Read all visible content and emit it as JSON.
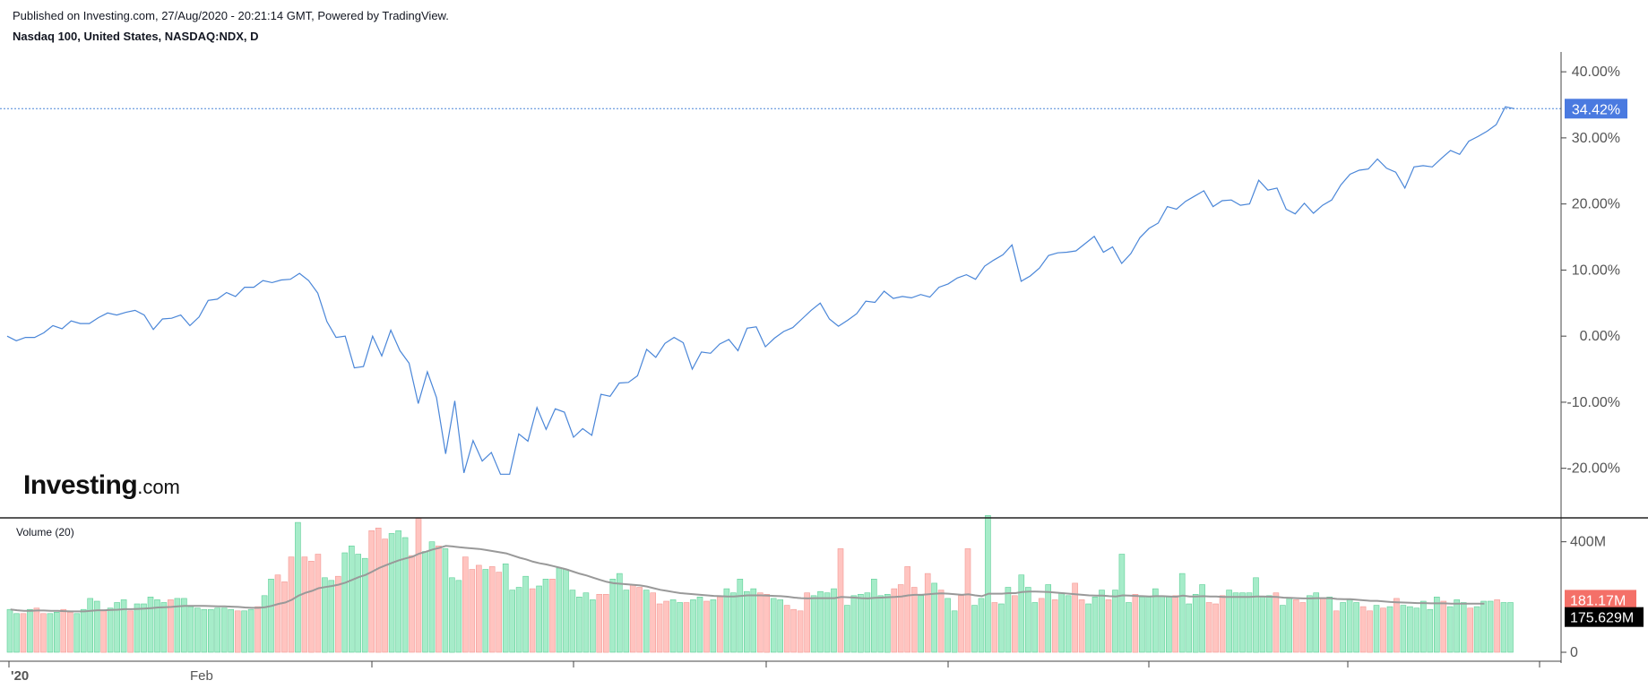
{
  "header": {
    "published": "Published on Investing.com, 27/Aug/2020 - 20:21:14 GMT, Powered by TradingView.",
    "symbol": "Nasdaq 100, United States, NASDAQ:NDX, D"
  },
  "logo": {
    "brand": "Investing",
    "suffix": ".com"
  },
  "colors": {
    "line": "#4a86d8",
    "badge": "#4a7ae0",
    "vol_up": "#a6ecc9",
    "vol_down": "#ffc4c0",
    "ma": "#999999",
    "down_badge": "#f47068"
  },
  "chart_data": [
    {
      "type": "line",
      "title": "",
      "y_unit": "%",
      "ylim": [
        -27.5,
        43
      ],
      "yticks": [
        40,
        30,
        20,
        10,
        0,
        -10,
        -20
      ],
      "ytick_labels": [
        "40.00%",
        "30.00%",
        "20.00%",
        "10.00%",
        "0.00%",
        "-10.00%",
        "-20.00%"
      ],
      "last_value": 34.42,
      "last_label": "34.42%",
      "x_labels": [
        "'20",
        "Feb"
      ],
      "values": [
        0.0,
        -0.7,
        -0.2,
        -0.2,
        0.5,
        1.6,
        1.1,
        2.3,
        1.9,
        1.9,
        2.8,
        3.5,
        3.2,
        3.6,
        3.9,
        3.2,
        1.0,
        2.6,
        2.7,
        3.2,
        1.6,
        2.9,
        5.4,
        5.6,
        6.6,
        6.0,
        7.4,
        7.4,
        8.4,
        8.1,
        8.5,
        8.6,
        9.5,
        8.4,
        6.5,
        2.2,
        -0.2,
        0.0,
        -4.8,
        -4.6,
        0.0,
        -3.0,
        0.9,
        -2.2,
        -4.1,
        -10.2,
        -5.4,
        -9.3,
        -17.8,
        -9.8,
        -20.7,
        -15.8,
        -18.9,
        -17.6,
        -20.9,
        -20.9,
        -14.8,
        -15.9,
        -10.8,
        -14.1,
        -11.0,
        -11.5,
        -15.3,
        -14.0,
        -15.0,
        -8.8,
        -9.1,
        -7.1,
        -7.0,
        -6.0,
        -2.0,
        -3.2,
        -1.1,
        -0.2,
        -1.0,
        -5.0,
        -2.4,
        -2.6,
        -1.2,
        -0.5,
        -2.2,
        1.2,
        1.4,
        -1.6,
        -0.3,
        0.7,
        1.3,
        2.6,
        3.9,
        5.0,
        2.6,
        1.5,
        2.4,
        3.4,
        5.3,
        5.1,
        6.8,
        5.7,
        6.0,
        5.8,
        6.3,
        5.9,
        7.4,
        7.9,
        8.8,
        9.3,
        8.6,
        10.6,
        11.5,
        12.3,
        13.8,
        8.3,
        9.1,
        10.3,
        12.2,
        12.6,
        12.7,
        12.9,
        14.0,
        15.1,
        12.7,
        13.5,
        11.0,
        12.5,
        14.9,
        16.3,
        17.1,
        19.6,
        19.2,
        20.4,
        21.2,
        22.0,
        19.6,
        20.5,
        20.6,
        19.8,
        20.0,
        23.6,
        22.1,
        22.4,
        19.2,
        18.5,
        20.1,
        18.6,
        19.8,
        20.6,
        22.9,
        24.5,
        25.1,
        25.3,
        26.8,
        25.4,
        24.8,
        22.4,
        25.6,
        25.8,
        25.6,
        26.9,
        28.1,
        27.5,
        29.5,
        30.2,
        31.0,
        32.0,
        34.7,
        34.42
      ]
    },
    {
      "type": "bar",
      "title": "Volume (20)",
      "y_unit": "M",
      "ylim": [
        0,
        480
      ],
      "yticks": [
        400,
        0
      ],
      "ytick_labels": [
        "400M",
        "0"
      ],
      "badges": {
        "volume": "181.17M",
        "ma": "175.629M"
      },
      "values": [
        155,
        140,
        140,
        155,
        160,
        140,
        140,
        145,
        155,
        145,
        140,
        155,
        195,
        185,
        150,
        160,
        180,
        190,
        150,
        175,
        175,
        200,
        190,
        180,
        190,
        195,
        195,
        165,
        160,
        155,
        155,
        160,
        160,
        155,
        150,
        150,
        155,
        165,
        205,
        265,
        280,
        255,
        345,
        470,
        345,
        330,
        355,
        270,
        260,
        275,
        360,
        385,
        355,
        340,
        440,
        450,
        410,
        430,
        440,
        415,
        350,
        485,
        365,
        400,
        385,
        375,
        270,
        260,
        345,
        300,
        315,
        300,
        310,
        290,
        320,
        225,
        235,
        275,
        230,
        240,
        265,
        265,
        305,
        300,
        225,
        200,
        215,
        190,
        210,
        210,
        265,
        285,
        225,
        245,
        235,
        225,
        215,
        175,
        185,
        190,
        180,
        180,
        190,
        200,
        185,
        190,
        200,
        230,
        215,
        265,
        220,
        230,
        215,
        210,
        195,
        190,
        170,
        155,
        150,
        215,
        205,
        220,
        215,
        230,
        375,
        170,
        205,
        210,
        215,
        265,
        205,
        210,
        230,
        245,
        310,
        235,
        205,
        285,
        250,
        225,
        195,
        150,
        205,
        375,
        170,
        195,
        495,
        180,
        175,
        235,
        205,
        280,
        235,
        180,
        195,
        245,
        190,
        215,
        205,
        250,
        190,
        175,
        200,
        225,
        190,
        225,
        355,
        180,
        210,
        200,
        200,
        230,
        205,
        200,
        205,
        285,
        175,
        210,
        245,
        180,
        175,
        205,
        225,
        215,
        215,
        215,
        270,
        200,
        205,
        215,
        170,
        195,
        190,
        180,
        205,
        215,
        195,
        200,
        150,
        180,
        190,
        180,
        165,
        150,
        170,
        160,
        165,
        195,
        170,
        165,
        160,
        185,
        155,
        200,
        185,
        165,
        190,
        180,
        160,
        165,
        185,
        185,
        190,
        180,
        180
      ],
      "up": [
        1,
        1,
        0,
        1,
        0,
        0,
        1,
        1,
        0,
        0,
        1,
        1,
        1,
        1,
        0,
        1,
        1,
        1,
        0,
        1,
        1,
        1,
        1,
        1,
        0,
        1,
        1,
        1,
        1,
        1,
        1,
        1,
        1,
        1,
        0,
        1,
        1,
        0,
        1,
        1,
        0,
        0,
        0,
        1,
        0,
        0,
        0,
        1,
        1,
        0,
        1,
        1,
        1,
        1,
        0,
        0,
        0,
        1,
        1,
        1,
        0,
        0,
        1,
        1,
        0,
        1,
        1,
        1,
        0,
        0,
        0,
        1,
        0,
        0,
        1,
        1,
        1,
        1,
        0,
        1,
        1,
        0,
        1,
        1,
        1,
        1,
        1,
        1,
        0,
        0,
        1,
        1,
        1,
        0,
        0,
        1,
        0,
        0,
        0,
        1,
        1,
        0,
        1,
        1,
        0,
        1,
        0,
        1,
        1,
        1,
        1,
        1,
        0,
        0,
        1,
        1,
        0,
        0,
        0,
        0,
        1,
        1,
        1,
        1,
        0,
        1,
        1,
        1,
        1,
        1,
        1,
        1,
        0,
        0,
        0,
        0,
        1,
        0,
        1,
        0,
        1,
        1,
        0,
        0,
        1,
        1,
        1,
        0,
        1,
        1,
        0,
        1,
        1,
        1,
        0,
        1,
        0,
        1,
        1,
        0,
        0,
        1,
        1,
        1,
        0,
        1,
        1,
        1,
        0,
        1,
        1,
        1,
        1,
        1,
        0,
        1,
        1,
        1,
        1,
        0,
        0,
        0,
        1,
        1,
        1,
        1,
        1,
        1,
        1,
        0,
        1,
        1,
        0,
        0,
        1,
        1,
        0,
        1,
        0,
        1,
        1,
        1,
        0,
        0,
        1,
        0,
        1,
        0,
        1,
        1,
        1,
        1,
        1,
        1,
        0,
        1,
        1,
        1,
        0,
        1,
        1,
        1,
        0,
        1,
        1
      ],
      "ma": [
        155,
        152,
        150,
        150,
        151,
        151,
        150,
        150,
        149,
        148,
        148,
        148,
        150,
        152,
        152,
        153,
        154,
        156,
        156,
        157,
        158,
        160,
        162,
        163,
        164,
        166,
        168,
        168,
        168,
        168,
        167,
        166,
        166,
        165,
        164,
        162,
        161,
        161,
        163,
        168,
        175,
        180,
        190,
        205,
        215,
        222,
        232,
        236,
        240,
        245,
        252,
        262,
        272,
        280,
        292,
        305,
        315,
        324,
        333,
        340,
        346,
        357,
        364,
        372,
        378,
        385,
        383,
        380,
        378,
        376,
        374,
        370,
        366,
        362,
        358,
        350,
        342,
        336,
        328,
        322,
        318,
        312,
        306,
        300,
        292,
        284,
        278,
        270,
        262,
        255,
        250,
        248,
        246,
        244,
        242,
        238,
        232,
        226,
        222,
        218,
        214,
        212,
        210,
        208,
        206,
        204,
        203,
        202,
        202,
        204,
        206,
        206,
        206,
        205,
        204,
        203,
        201,
        198,
        196,
        195,
        196,
        196,
        196,
        196,
        200,
        199,
        198,
        196,
        195,
        197,
        198,
        199,
        200,
        202,
        206,
        208,
        208,
        210,
        212,
        213,
        212,
        210,
        208,
        210,
        206,
        203,
        212,
        212,
        212,
        214,
        214,
        218,
        220,
        220,
        219,
        218,
        216,
        214,
        212,
        210,
        208,
        206,
        205,
        205,
        203,
        202,
        206,
        205,
        204,
        203,
        202,
        203,
        203,
        202,
        201,
        205,
        202,
        202,
        203,
        202,
        202,
        200,
        200,
        200,
        200,
        200,
        202,
        202,
        201,
        200,
        198,
        197,
        196,
        195,
        195,
        196,
        196,
        196,
        193,
        192,
        192,
        190,
        188,
        186,
        186,
        184,
        182,
        181,
        180,
        179,
        178,
        178,
        177,
        177,
        177,
        176,
        176,
        176,
        176,
        176,
        176
      ]
    }
  ]
}
